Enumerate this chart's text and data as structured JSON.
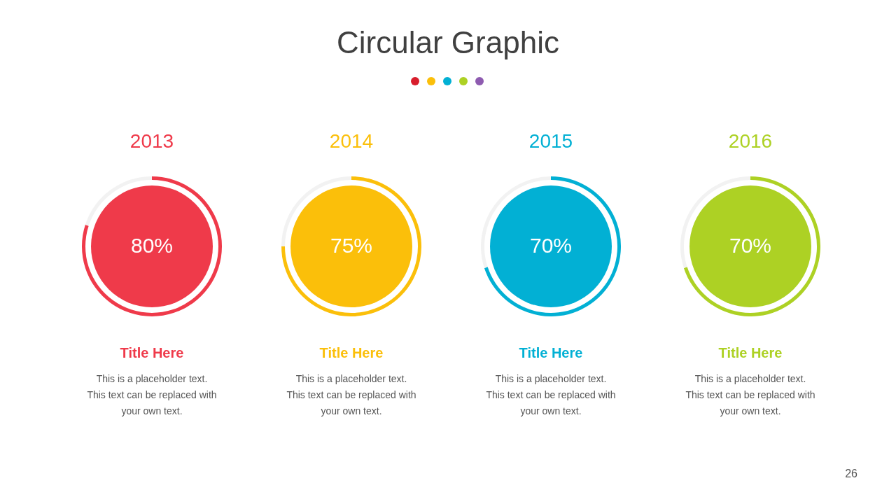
{
  "chart_data": [
    {
      "type": "other",
      "title": "Circular Graphic",
      "annotations": [
        "26"
      ]
    },
    {
      "type": "donut",
      "title": "2013",
      "subtitle": "Title Here",
      "categories": [
        null,
        null
      ],
      "values": [
        80,
        20
      ],
      "colors": [
        "#ef3a4a",
        "#f2f2f2"
      ],
      "value_labels": [
        "80%",
        null
      ],
      "annotations": [
        "This is a placeholder text.",
        "This text can be replaced with",
        "your own text."
      ]
    },
    {
      "type": "donut",
      "title": "2014",
      "subtitle": "Title Here",
      "categories": [
        null,
        null
      ],
      "values": [
        75,
        25
      ],
      "colors": [
        "#fbbf0a",
        "#f2f2f2"
      ],
      "value_labels": [
        "75%",
        null
      ],
      "annotations": [
        "This is a placeholder text.",
        "This text can be replaced with",
        "your own text."
      ]
    },
    {
      "type": "donut",
      "title": "2015",
      "subtitle": "Title Here",
      "categories": [
        null,
        null
      ],
      "values": [
        70,
        30
      ],
      "colors": [
        "#02b0d4",
        "#f2f2f2"
      ],
      "value_labels": [
        "70%",
        null
      ],
      "annotations": [
        "This is a placeholder text.",
        "This text can be replaced with",
        "your own text."
      ]
    },
    {
      "type": "donut",
      "title": "2016",
      "subtitle": "Title Here",
      "categories": [
        null,
        null
      ],
      "values": [
        70,
        30
      ],
      "colors": [
        "#add124",
        "#f2f2f2"
      ],
      "value_labels": [
        "70%",
        null
      ],
      "annotations": [
        "This is a placeholder text.",
        "This text can be replaced with",
        "your own text."
      ]
    }
  ]
}
